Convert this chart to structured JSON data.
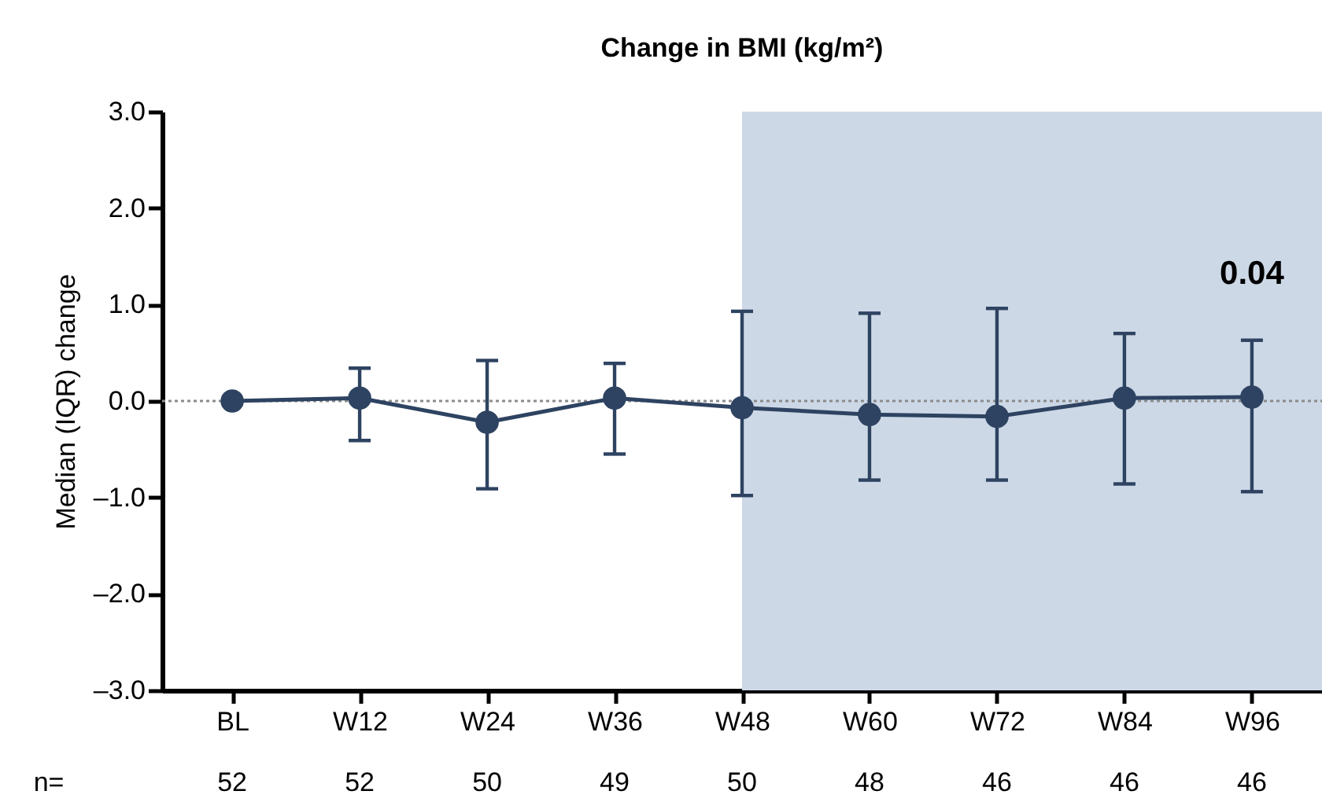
{
  "chart_data": {
    "type": "line",
    "title": "Change in BMI (kg/m²)",
    "ylabel": "Median (IQR) change",
    "categories": [
      "BL",
      "W12",
      "W24",
      "W36",
      "W48",
      "W60",
      "W72",
      "W84",
      "W96"
    ],
    "series": [
      {
        "color": "#2e4361",
        "values": [
          0,
          0.03,
          -0.22,
          0.03,
          -0.07,
          -0.14,
          -0.16,
          0.03,
          0.04
        ],
        "errors": [
          null,
          [
            -0.41,
            0.34
          ],
          [
            -0.91,
            0.42
          ],
          [
            -0.55,
            0.39
          ],
          [
            -0.98,
            0.93
          ],
          [
            -0.82,
            0.91
          ],
          [
            -0.82,
            0.96
          ],
          [
            -0.86,
            0.7
          ],
          [
            -0.94,
            0.63
          ]
        ],
        "value_labels": [
          null,
          null,
          null,
          null,
          null,
          null,
          null,
          null,
          "0.04"
        ]
      }
    ],
    "ylim": [
      -3,
      3
    ],
    "yticks": [
      {
        "value": -3,
        "label": "–3.0"
      },
      {
        "value": -2,
        "label": "–2.0"
      },
      {
        "value": -1,
        "label": "–1.0"
      },
      {
        "value": 0,
        "label": "0.0"
      },
      {
        "value": 1,
        "label": "1.0"
      },
      {
        "value": 2,
        "label": "2.0"
      },
      {
        "value": 3,
        "label": "3.0"
      }
    ],
    "marker": "circle",
    "line_style": "solid",
    "grid": false,
    "ref_lines": [
      {
        "axis": "y",
        "value": 0,
        "color": "#8c8c8c",
        "line_style": "dotted"
      }
    ],
    "bands": [
      {
        "axis": "x",
        "from": "W48",
        "to": "W96",
        "color": "#ccd8e6"
      }
    ],
    "annotations": [
      "n=",
      "52",
      "52",
      "50",
      "49",
      "50",
      "48",
      "46",
      "46",
      "46"
    ]
  }
}
